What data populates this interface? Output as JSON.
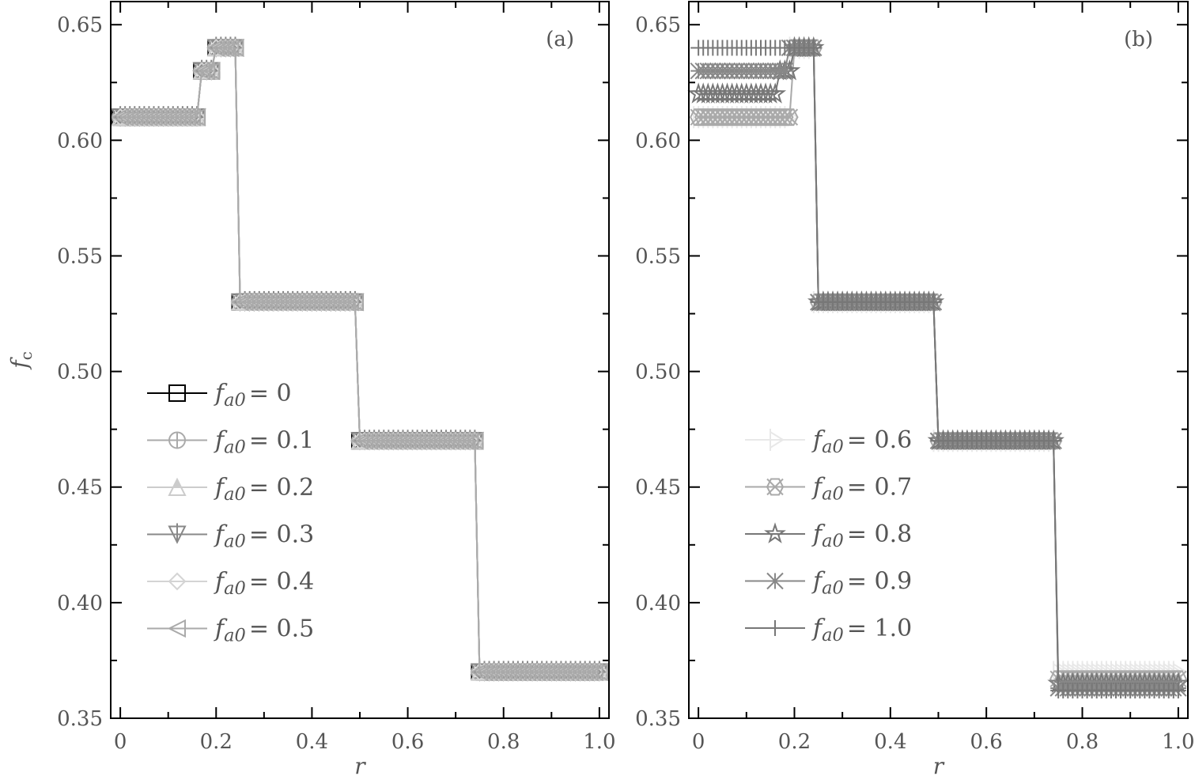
{
  "chart_data": [
    {
      "type": "line",
      "panel_label": "(a)",
      "xlabel": "r",
      "ylabel": "f_c",
      "xlim": [
        -0.02,
        1.02
      ],
      "ylim": [
        0.35,
        0.66
      ],
      "x_step": 0.01,
      "xticks": [
        "0",
        "0.2",
        "0.4",
        "0.6",
        "0.8",
        "1.0"
      ],
      "yticks": [
        "0.35",
        "0.40",
        "0.45",
        "0.50",
        "0.55",
        "0.60",
        "0.65"
      ],
      "legend": "lower-left",
      "series": [
        {
          "name": "f_a0 = 0",
          "marker": "square",
          "color": "#000000",
          "steps": [
            [
              0,
              0.16,
              0.61
            ],
            [
              0.17,
              0.19,
              0.63
            ],
            [
              0.2,
              0.24,
              0.64
            ],
            [
              0.25,
              0.49,
              0.53
            ],
            [
              0.5,
              0.74,
              0.47
            ],
            [
              0.75,
              1.0,
              0.37
            ]
          ]
        },
        {
          "name": "f_a0 = 0.1",
          "marker": "circle-plus",
          "color": "#aaaaaa",
          "steps": [
            [
              0,
              0.16,
              0.61
            ],
            [
              0.17,
              0.19,
              0.63
            ],
            [
              0.2,
              0.24,
              0.64
            ],
            [
              0.25,
              0.49,
              0.53
            ],
            [
              0.5,
              0.74,
              0.47
            ],
            [
              0.75,
              1.0,
              0.37
            ]
          ]
        },
        {
          "name": "f_a0 = 0.2",
          "marker": "triangle-up",
          "color": "#cccccc",
          "steps": [
            [
              0,
              0.16,
              0.61
            ],
            [
              0.17,
              0.19,
              0.63
            ],
            [
              0.2,
              0.24,
              0.64
            ],
            [
              0.25,
              0.49,
              0.53
            ],
            [
              0.5,
              0.74,
              0.47
            ],
            [
              0.75,
              1.0,
              0.37
            ]
          ]
        },
        {
          "name": "f_a0 = 0.3",
          "marker": "triangle-down-plus",
          "color": "#888888",
          "steps": [
            [
              0,
              0.16,
              0.61
            ],
            [
              0.17,
              0.19,
              0.63
            ],
            [
              0.2,
              0.24,
              0.64
            ],
            [
              0.25,
              0.49,
              0.53
            ],
            [
              0.5,
              0.74,
              0.47
            ],
            [
              0.75,
              1.0,
              0.37
            ]
          ]
        },
        {
          "name": "f_a0 = 0.4",
          "marker": "diamond",
          "color": "#d4d4d4",
          "steps": [
            [
              0,
              0.16,
              0.61
            ],
            [
              0.17,
              0.19,
              0.63
            ],
            [
              0.2,
              0.24,
              0.64
            ],
            [
              0.25,
              0.49,
              0.53
            ],
            [
              0.5,
              0.74,
              0.47
            ],
            [
              0.75,
              1.0,
              0.37
            ]
          ]
        },
        {
          "name": "f_a0 = 0.5",
          "marker": "triangle-left",
          "color": "#aaaaaa",
          "steps": [
            [
              0,
              0.16,
              0.61
            ],
            [
              0.17,
              0.19,
              0.63
            ],
            [
              0.2,
              0.24,
              0.64
            ],
            [
              0.25,
              0.49,
              0.53
            ],
            [
              0.5,
              0.74,
              0.47
            ],
            [
              0.75,
              1.0,
              0.37
            ]
          ]
        }
      ]
    },
    {
      "type": "line",
      "panel_label": "(b)",
      "xlabel": "r",
      "ylabel": "",
      "xlim": [
        -0.02,
        1.02
      ],
      "ylim": [
        0.35,
        0.66
      ],
      "x_step": 0.01,
      "xticks": [
        "0",
        "0.2",
        "0.4",
        "0.6",
        "0.8",
        "1.0"
      ],
      "yticks": [
        "0.35",
        "0.40",
        "0.45",
        "0.50",
        "0.55",
        "0.60",
        "0.65"
      ],
      "legend": "lower-left",
      "series": [
        {
          "name": "f_a0 = 0.6",
          "marker": "triangle-right-plus",
          "color": "#e8e8e8",
          "steps": [
            [
              0,
              0.19,
              0.61
            ],
            [
              0.2,
              0.24,
              0.64
            ],
            [
              0.25,
              0.49,
              0.53
            ],
            [
              0.5,
              0.74,
              0.47
            ],
            [
              0.75,
              1.0,
              0.37
            ]
          ]
        },
        {
          "name": "f_a0 = 0.7",
          "marker": "hex-x",
          "color": "#aaaaaa",
          "steps": [
            [
              0,
              0.19,
              0.61
            ],
            [
              0.2,
              0.24,
              0.64
            ],
            [
              0.25,
              0.49,
              0.53
            ],
            [
              0.5,
              0.74,
              0.47
            ],
            [
              0.75,
              1.0,
              0.367
            ]
          ]
        },
        {
          "name": "f_a0 = 0.8",
          "marker": "star",
          "color": "#777777",
          "steps": [
            [
              0,
              0.16,
              0.62
            ],
            [
              0.17,
              0.19,
              0.63
            ],
            [
              0.2,
              0.24,
              0.64
            ],
            [
              0.25,
              0.49,
              0.53
            ],
            [
              0.5,
              0.74,
              0.47
            ],
            [
              0.75,
              1.0,
              0.365
            ]
          ]
        },
        {
          "name": "f_a0 = 0.9",
          "marker": "asterisk",
          "color": "#888888",
          "steps": [
            [
              0,
              0.18,
              0.63
            ],
            [
              0.19,
              0.24,
              0.64
            ],
            [
              0.25,
              0.49,
              0.53
            ],
            [
              0.5,
              0.74,
              0.47
            ],
            [
              0.75,
              1.0,
              0.363
            ]
          ]
        },
        {
          "name": "f_a0 = 1.0",
          "marker": "plus",
          "color": "#777777",
          "steps": [
            [
              0,
              0.24,
              0.64
            ],
            [
              0.25,
              0.49,
              0.53
            ],
            [
              0.5,
              0.74,
              0.47
            ],
            [
              0.75,
              1.0,
              0.362
            ]
          ]
        }
      ]
    }
  ]
}
